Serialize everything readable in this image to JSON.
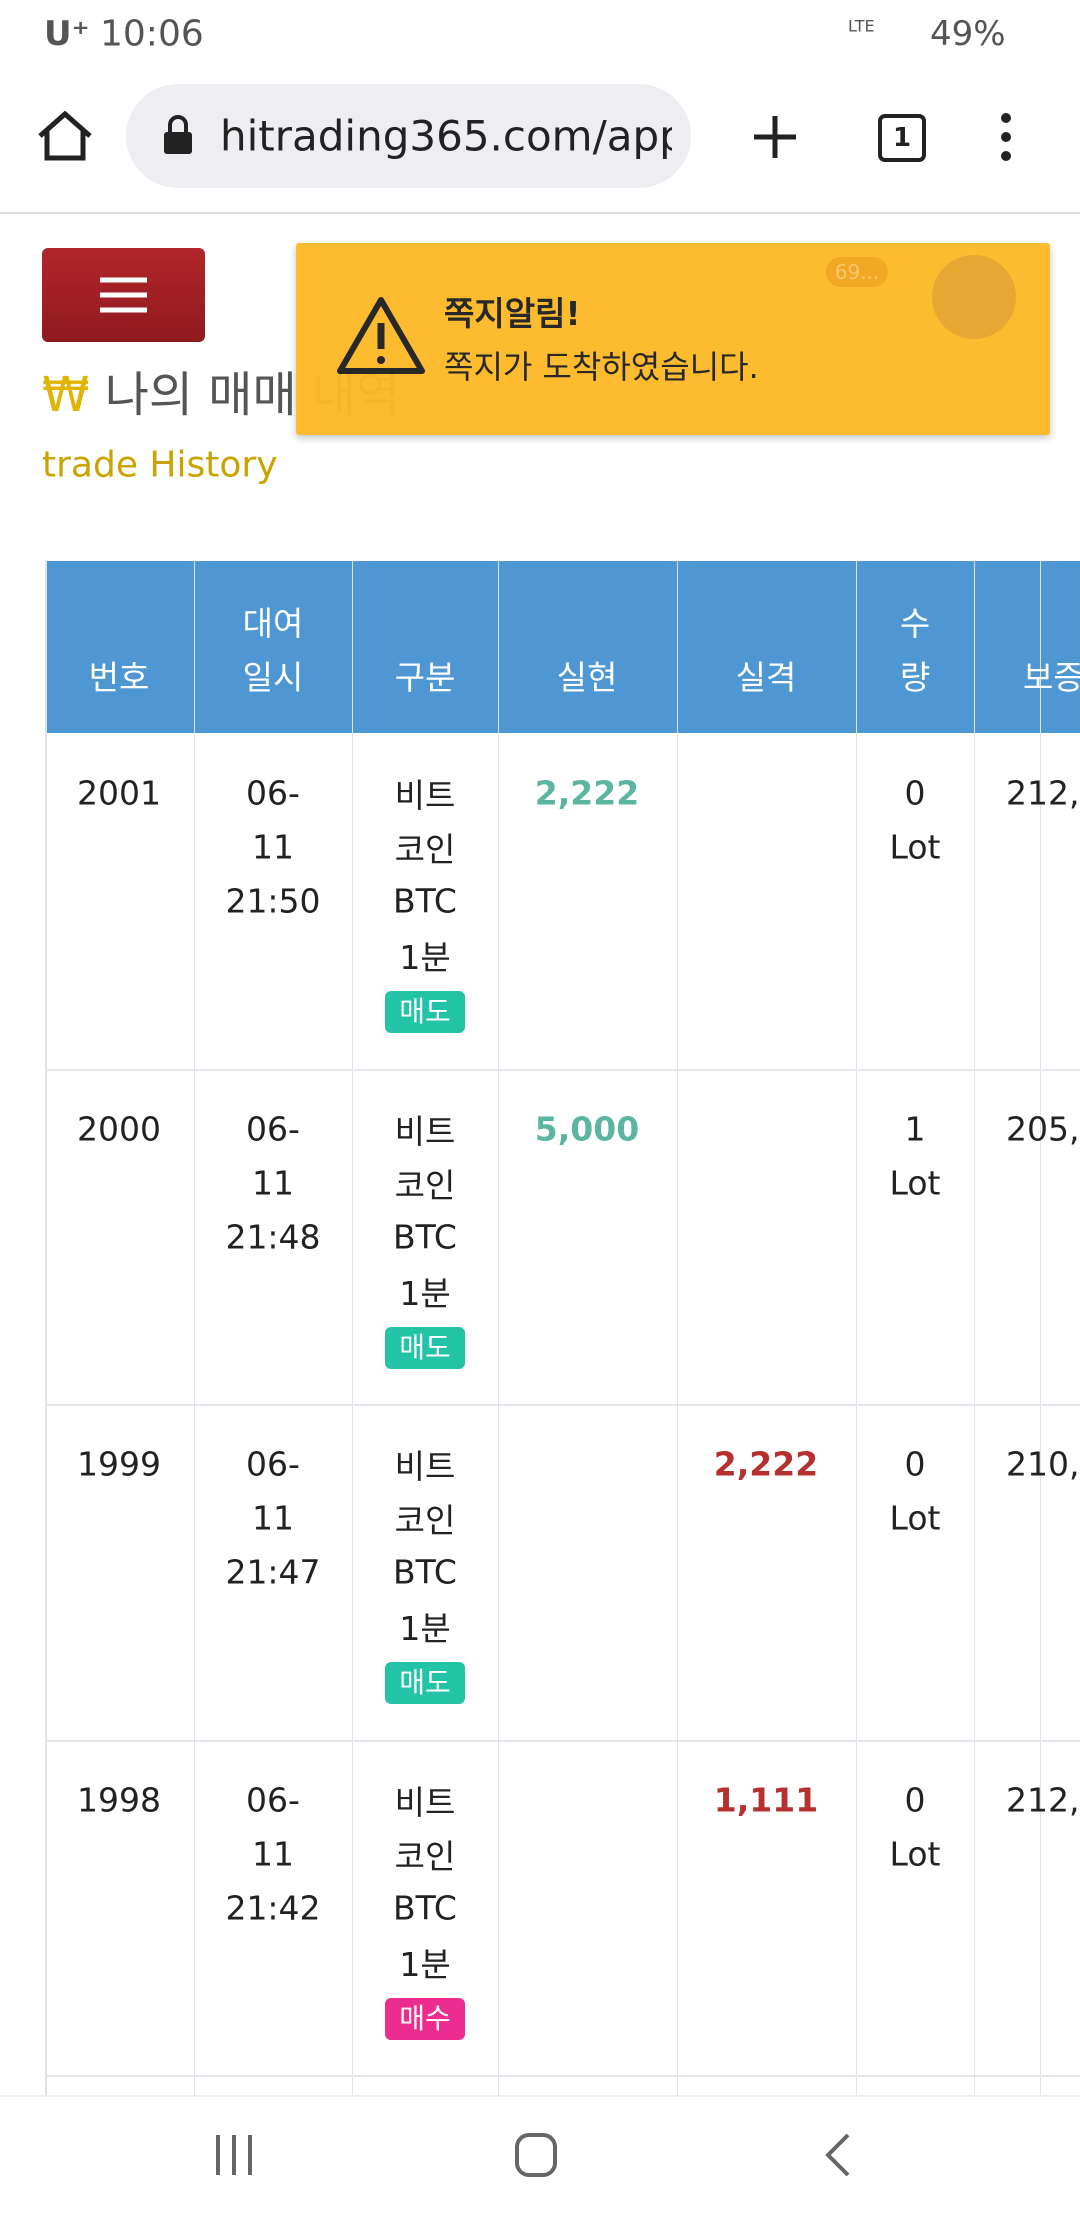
{
  "status_bar": {
    "carrier": "U⁺",
    "time": "10:06",
    "network": "LTE",
    "battery": "49%"
  },
  "browser": {
    "url": "hitrading365.com/app",
    "tabs": "1"
  },
  "notification": {
    "title": "쪽지알림!",
    "message": "쪽지가 도착하였습니다.",
    "badge": "69..."
  },
  "page": {
    "title": "나의 매매 내역",
    "subtitle": "trade History"
  },
  "table": {
    "headers": [
      [
        "번호"
      ],
      [
        "대여",
        "일시"
      ],
      [
        "구분"
      ],
      [
        "실현"
      ],
      [
        "실격"
      ],
      [
        "수",
        "량"
      ],
      [
        "보증"
      ]
    ],
    "rows": [
      {
        "no": "2001",
        "date": [
          "06-",
          "11",
          "21:50"
        ],
        "type": [
          "비트",
          "코인",
          "BTC",
          "1분"
        ],
        "side": "매도",
        "profit": "2,222",
        "qty": [
          "0",
          "Lot"
        ],
        "deposit": "212,"
      },
      {
        "no": "2000",
        "date": [
          "06-",
          "11",
          "21:48"
        ],
        "type": [
          "비트",
          "코인",
          "BTC",
          "1분"
        ],
        "side": "매도",
        "profit": "5,000",
        "qty": [
          "1",
          "Lot"
        ],
        "deposit": "205,"
      },
      {
        "no": "1999",
        "date": [
          "06-",
          "11",
          "21:47"
        ],
        "type": [
          "비트",
          "코인",
          "BTC",
          "1분"
        ],
        "side": "매도",
        "loss": "2,222",
        "qty": [
          "0",
          "Lot"
        ],
        "deposit": "210,"
      },
      {
        "no": "1998",
        "date": [
          "06-",
          "11",
          "21:42"
        ],
        "type": [
          "비트",
          "코인",
          "BTC",
          "1분"
        ],
        "side": "매수",
        "loss": "1,111",
        "qty": [
          "0",
          "Lot"
        ],
        "deposit": "212,"
      }
    ]
  }
}
